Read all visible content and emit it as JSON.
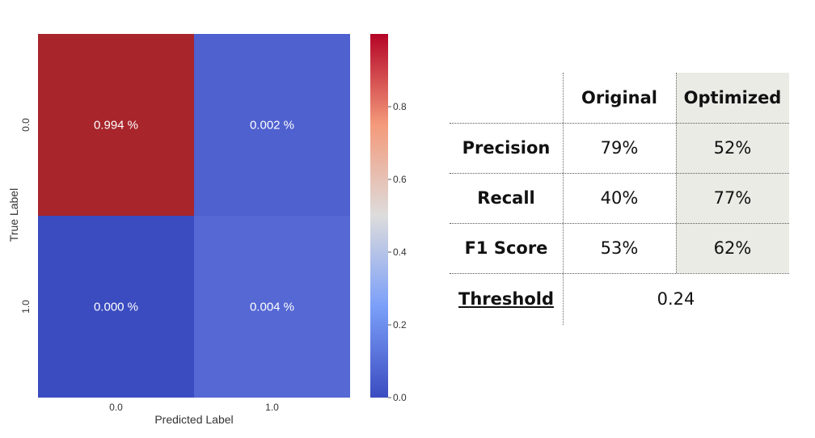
{
  "chart_data": {
    "type": "heatmap",
    "x_categories": [
      "0.0",
      "1.0"
    ],
    "y_categories": [
      "0.0",
      "1.0"
    ],
    "values": [
      [
        0.994,
        0.002
      ],
      [
        0.0,
        0.004
      ]
    ],
    "cell_labels": [
      [
        "0.994 %",
        "0.002 %"
      ],
      [
        "0.000 %",
        "0.004 %"
      ]
    ],
    "xlabel": "Predicted Label",
    "ylabel": "True Label",
    "colormap": "coolwarm",
    "colorbar": {
      "range": [
        0,
        1
      ],
      "ticks": [
        "0.0",
        "0.2",
        "0.4",
        "0.6",
        "0.8"
      ],
      "tick_values": [
        0.0,
        0.2,
        0.4,
        0.6,
        0.8
      ]
    },
    "grid": false,
    "cell_colors": [
      [
        "#a8252c",
        "#4f60cf"
      ],
      [
        "#3b4cc0",
        "#5568d4"
      ]
    ]
  },
  "metrics_table": {
    "columns": [
      "Original",
      "Optimized"
    ],
    "rows": [
      {
        "label": "Precision",
        "original": "79%",
        "optimized": "52%"
      },
      {
        "label": "Recall",
        "original": "40%",
        "optimized": "77%"
      },
      {
        "label": "F1 Score",
        "original": "53%",
        "optimized": "62%"
      }
    ],
    "threshold": {
      "label": "Threshold",
      "value": "0.24"
    },
    "highlight_color": "#ebebe6"
  }
}
